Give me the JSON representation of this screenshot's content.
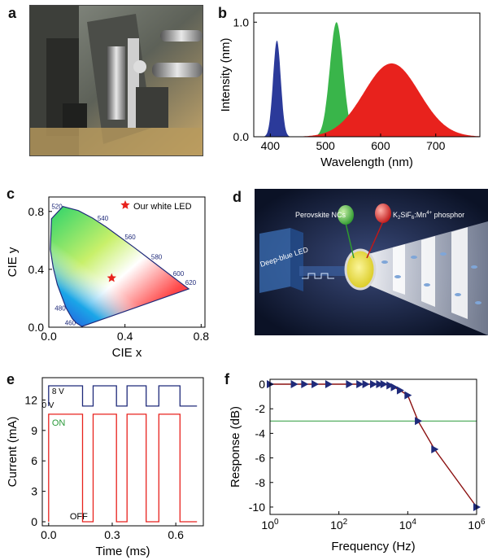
{
  "panels": {
    "a": {
      "letter": "a"
    },
    "b": {
      "letter": "b"
    },
    "c": {
      "letter": "c"
    },
    "d": {
      "letter": "d",
      "labels": {
        "led": "Deep-blue LED",
        "nc": "Perovskite NCs",
        "phosphor_main": "K",
        "phosphor_sub": "2",
        "phosphor_mid": "SiF",
        "phosphor_sub2": "6",
        "phosphor_end": ":Mn",
        "phosphor_sup": "4+",
        "phosphor_tail": " phosphor"
      }
    },
    "e": {
      "letter": "e",
      "top_label_8v": "8 V",
      "top_label_0v": "0 V",
      "on": "ON",
      "off": "OFF"
    },
    "f": {
      "letter": "f"
    }
  },
  "colors": {
    "blue": "#2b3a9a",
    "green": "#39b54a",
    "red": "#e8221d",
    "navy": "#1f2a7a",
    "dark_red": "#8b1010",
    "line_green": "#2a9a3a"
  },
  "chart_data": [
    {
      "id": "b",
      "type": "area",
      "xlabel": "Wavelength (nm)",
      "ylabel": "Intensity (nm)",
      "xlim": [
        370,
        780
      ],
      "ylim": [
        0,
        1.08
      ],
      "xticks": [
        400,
        500,
        600,
        700
      ],
      "yticks": [
        {
          "v": 0,
          "label": "0.0"
        },
        {
          "v": 1.0,
          "label": "1.0"
        }
      ],
      "series": [
        {
          "color": "#2b3a9a",
          "peak": 412,
          "height": 0.84,
          "width": 7
        },
        {
          "color": "#39b54a",
          "peak": 520,
          "height": 1.0,
          "width": 12
        },
        {
          "color": "#e8221d",
          "peak": 620,
          "height": 0.64,
          "width": 50
        }
      ]
    },
    {
      "id": "c",
      "type": "scatter",
      "xlabel": "CIE x",
      "ylabel": "CIE y",
      "xlim": [
        0.0,
        0.82
      ],
      "ylim": [
        0.0,
        0.9
      ],
      "xticks": [
        {
          "v": 0.0,
          "label": "0.0"
        },
        {
          "v": 0.4,
          "label": "0.4"
        },
        {
          "v": 0.8,
          "label": "0.8"
        }
      ],
      "yticks": [
        {
          "v": 0.0,
          "label": "0.0"
        },
        {
          "v": 0.4,
          "label": "0.4"
        },
        {
          "v": 0.8,
          "label": "0.8"
        }
      ],
      "wavelength_labels": [
        {
          "label": "460",
          "x": 0.144,
          "y": 0.03
        },
        {
          "label": "480",
          "x": 0.091,
          "y": 0.133
        },
        {
          "label": "520",
          "x": 0.074,
          "y": 0.834
        },
        {
          "label": "540",
          "x": 0.23,
          "y": 0.754
        },
        {
          "label": "560",
          "x": 0.373,
          "y": 0.624
        },
        {
          "label": "580",
          "x": 0.512,
          "y": 0.487
        },
        {
          "label": "600",
          "x": 0.627,
          "y": 0.372
        },
        {
          "label": "620",
          "x": 0.691,
          "y": 0.308
        }
      ],
      "marker": {
        "label": "Our white LED",
        "x": 0.33,
        "y": 0.34,
        "color": "#e8221d"
      }
    },
    {
      "id": "e",
      "type": "line",
      "xlabel": "Time (ms)",
      "ylabel": "Current (mA)",
      "xlim": [
        -0.03,
        0.73
      ],
      "ylim": [
        -0.4,
        14.2
      ],
      "xticks": [
        {
          "v": 0.0,
          "label": "0.0"
        },
        {
          "v": 0.3,
          "label": "0.3"
        },
        {
          "v": 0.6,
          "label": "0.6"
        }
      ],
      "yticks": [
        0,
        3,
        6,
        9,
        12
      ],
      "periods": [
        [
          0.0,
          0.12
        ],
        [
          0.24,
          0.38
        ],
        [
          0.38,
          0.52
        ],
        [
          0.52,
          0.66
        ]
      ],
      "on_intervals": [
        [
          0.06,
          0.16
        ],
        [
          0.21,
          0.32
        ],
        [
          0.37,
          0.46
        ],
        [
          0.52,
          0.62
        ]
      ],
      "current_on": 10.6,
      "current_off": 0.0,
      "square_high": 13.4,
      "square_low": 11.4
    },
    {
      "id": "f",
      "type": "line",
      "xlabel": "Frequency (Hz)",
      "ylabel": "Response (dB)",
      "xscale": "log",
      "xlim": [
        1,
        1000000
      ],
      "ylim": [
        -10.6,
        0.4
      ],
      "xticks": [
        {
          "v": 1,
          "base": "10",
          "exp": "0"
        },
        {
          "v": 100,
          "base": "10",
          "exp": "2"
        },
        {
          "v": 10000,
          "base": "10",
          "exp": "4"
        },
        {
          "v": 1000000,
          "base": "10",
          "exp": "6"
        }
      ],
      "yticks": [
        0,
        -2,
        -4,
        -6,
        -8,
        -10
      ],
      "series": [
        {
          "x": [
            1,
            5,
            10,
            20,
            50,
            200,
            400,
            600,
            1000,
            1500,
            2000,
            3000,
            4000,
            6000,
            10000,
            20000,
            60000,
            1000000
          ],
          "y": [
            0,
            0,
            0,
            0,
            0,
            0,
            0,
            0,
            0,
            0,
            0,
            -0.1,
            -0.25,
            -0.5,
            -0.9,
            -3.0,
            -5.3,
            -10.0
          ]
        }
      ],
      "reference_y": -3.0
    }
  ]
}
